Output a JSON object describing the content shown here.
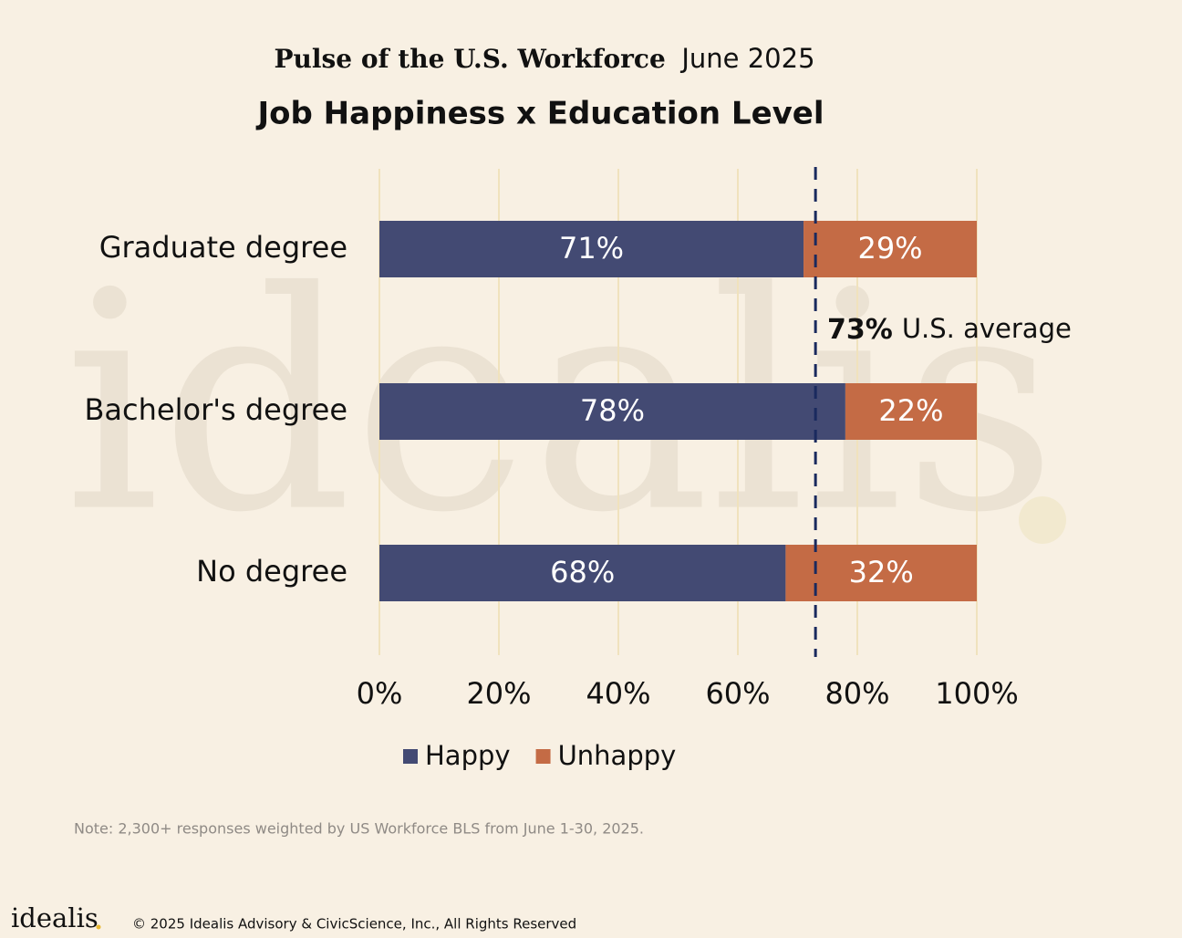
{
  "chart_data": {
    "type": "bar",
    "orientation": "horizontal",
    "stacked": true,
    "title_brand": "Pulse of the U.S. Workforce",
    "title_date": "June 2025",
    "title": "Job Happiness x Education Level",
    "categories": [
      "Graduate degree",
      "Bachelor's degree",
      "No degree"
    ],
    "series": [
      {
        "name": "Happy",
        "color": "#434a73",
        "values": [
          71,
          78,
          68
        ],
        "value_labels": [
          "71%",
          "78%",
          "68%"
        ]
      },
      {
        "name": "Unhappy",
        "color": "#c46b45",
        "values": [
          29,
          22,
          32
        ],
        "value_labels": [
          "29%",
          "22%",
          "32%"
        ]
      }
    ],
    "xlim": [
      0,
      100
    ],
    "xticks": [
      {
        "value": 0,
        "label": "0%"
      },
      {
        "value": 20,
        "label": "20%"
      },
      {
        "value": 40,
        "label": "40%"
      },
      {
        "value": 60,
        "label": "60%"
      },
      {
        "value": 80,
        "label": "80%"
      },
      {
        "value": 100,
        "label": "100%"
      }
    ],
    "grid": true,
    "reference_line": {
      "value": 73,
      "label": "73%",
      "text": "U.S. average",
      "color": "#1a2a5e"
    },
    "legend": "bottom",
    "note": "Note: 2,300+ responses weighted by US Workforce BLS from June 1-30, 2025.",
    "watermark": "idealis",
    "logo": "idealis",
    "copyright": "© 2025 Idealis Advisory & CivicScience, Inc.,  All Rights Reserved"
  }
}
